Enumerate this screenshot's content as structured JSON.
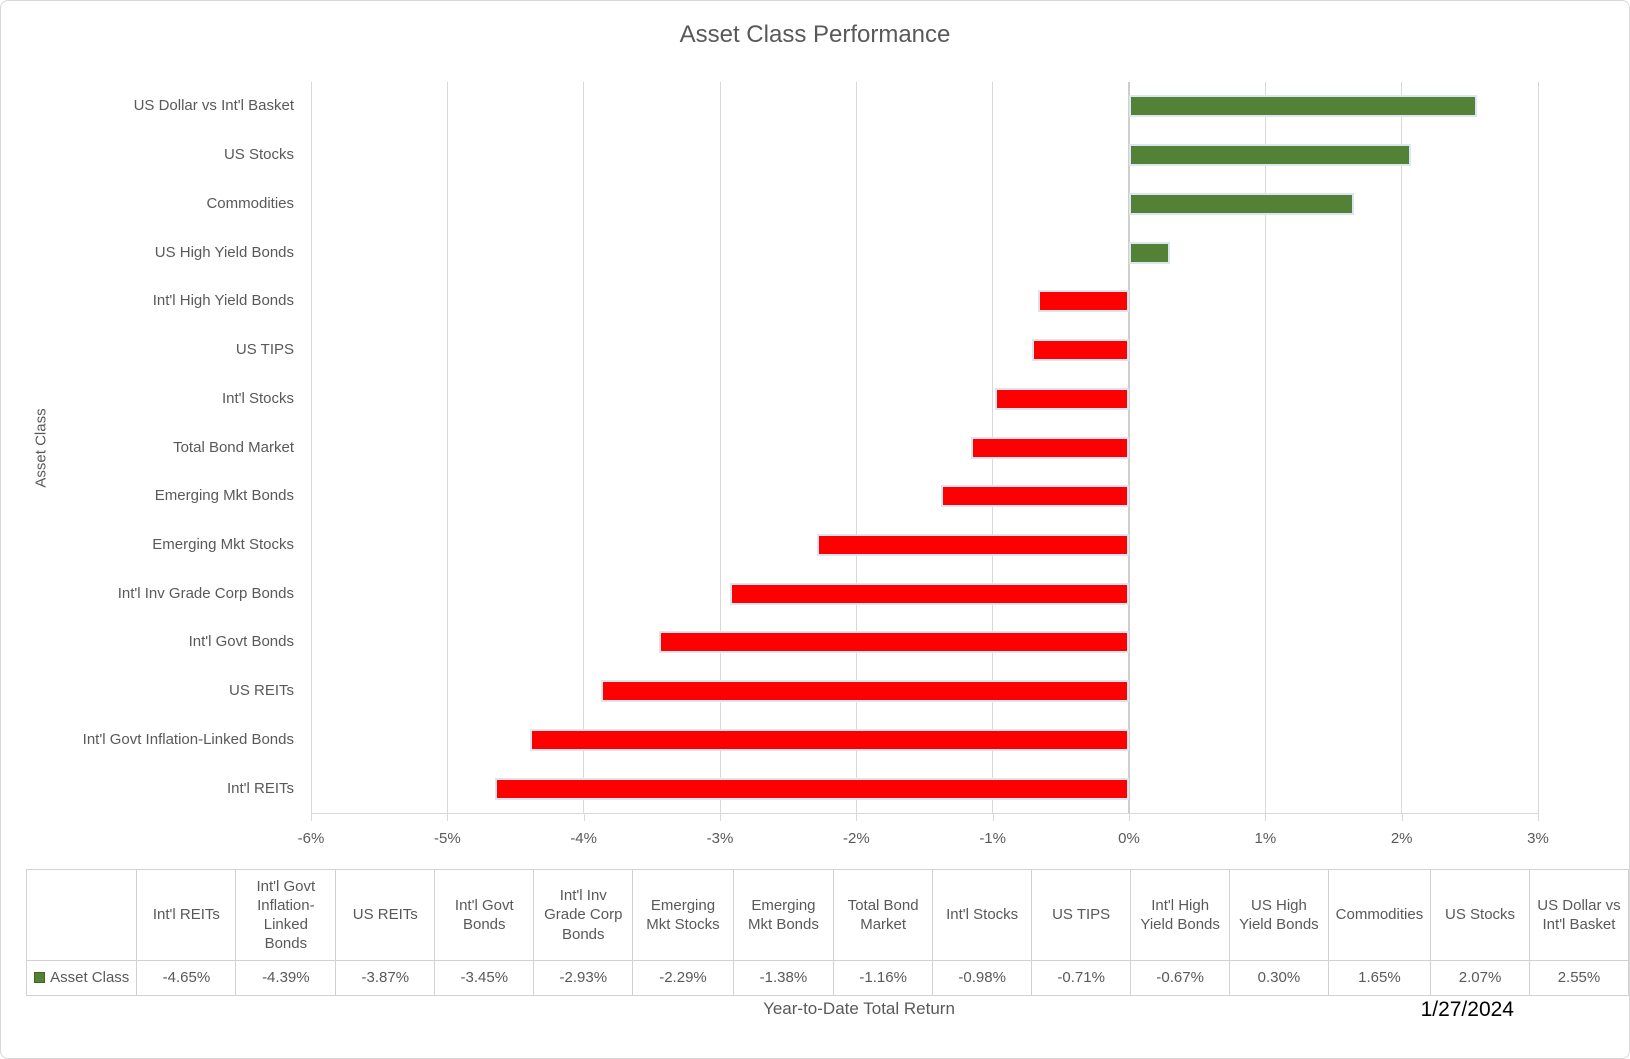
{
  "labels": {
    "x_axis_title": "Year-to-Date Total Return",
    "y_axis_title": "Asset Class",
    "date": "1/27/2024"
  },
  "colors": {
    "positive_bar": "#538135",
    "negative_bar": "#ff0000",
    "bar_border": "#dce6f2",
    "gridline": "#d9d9d9",
    "text": "#595959",
    "date_text": "#000000"
  },
  "chart_data": {
    "type": "bar",
    "orientation": "horizontal",
    "title": "Asset Class Performance",
    "xlabel": "Year-to-Date Total Return",
    "ylabel": "Asset Class",
    "xlim": [
      -6,
      3
    ],
    "x_ticks": [
      -6,
      -5,
      -4,
      -3,
      -2,
      -1,
      0,
      1,
      2,
      3
    ],
    "x_tick_labels": [
      "-6%",
      "-5%",
      "-4%",
      "-3%",
      "-2%",
      "-1%",
      "0%",
      "1%",
      "2%",
      "3%"
    ],
    "grid": true,
    "series_name": "Asset Class",
    "legend_position": "table-left",
    "categories": [
      "US Dollar vs Int'l Basket",
      "US Stocks",
      "Commodities",
      "US High Yield Bonds",
      "Int'l High Yield Bonds",
      "US TIPS",
      "Int'l Stocks",
      "Total Bond Market",
      "Emerging Mkt Bonds",
      "Emerging Mkt Stocks",
      "Int'l Inv Grade Corp Bonds",
      "Int'l Govt Bonds",
      "US REITs",
      "Int'l Govt Inflation-Linked Bonds",
      "Int'l REITs"
    ],
    "values": [
      2.55,
      2.07,
      1.65,
      0.3,
      -0.67,
      -0.71,
      -0.98,
      -1.16,
      -1.38,
      -2.29,
      -2.93,
      -3.45,
      -3.87,
      -4.39,
      -4.65
    ]
  },
  "data_table": {
    "legend_label": "Asset Class",
    "columns": [
      {
        "header": "Int'l REITs",
        "value": "-4.65%"
      },
      {
        "header": "Int'l Govt Inflation-Linked Bonds",
        "value": "-4.39%"
      },
      {
        "header": "US REITs",
        "value": "-3.87%"
      },
      {
        "header": "Int'l Govt Bonds",
        "value": "-3.45%"
      },
      {
        "header": "Int'l Inv Grade Corp Bonds",
        "value": "-2.93%"
      },
      {
        "header": "Emerging Mkt Stocks",
        "value": "-2.29%"
      },
      {
        "header": "Emerging Mkt Bonds",
        "value": "-1.38%"
      },
      {
        "header": "Total Bond Market",
        "value": "-1.16%"
      },
      {
        "header": "Int'l Stocks",
        "value": "-0.98%"
      },
      {
        "header": "US TIPS",
        "value": "-0.71%"
      },
      {
        "header": "Int'l High Yield Bonds",
        "value": "-0.67%"
      },
      {
        "header": "US High Yield Bonds",
        "value": "0.30%"
      },
      {
        "header": "Commodities",
        "value": "1.65%"
      },
      {
        "header": "US Stocks",
        "value": "2.07%"
      },
      {
        "header": "US Dollar vs Int'l Basket",
        "value": "2.55%"
      }
    ]
  }
}
